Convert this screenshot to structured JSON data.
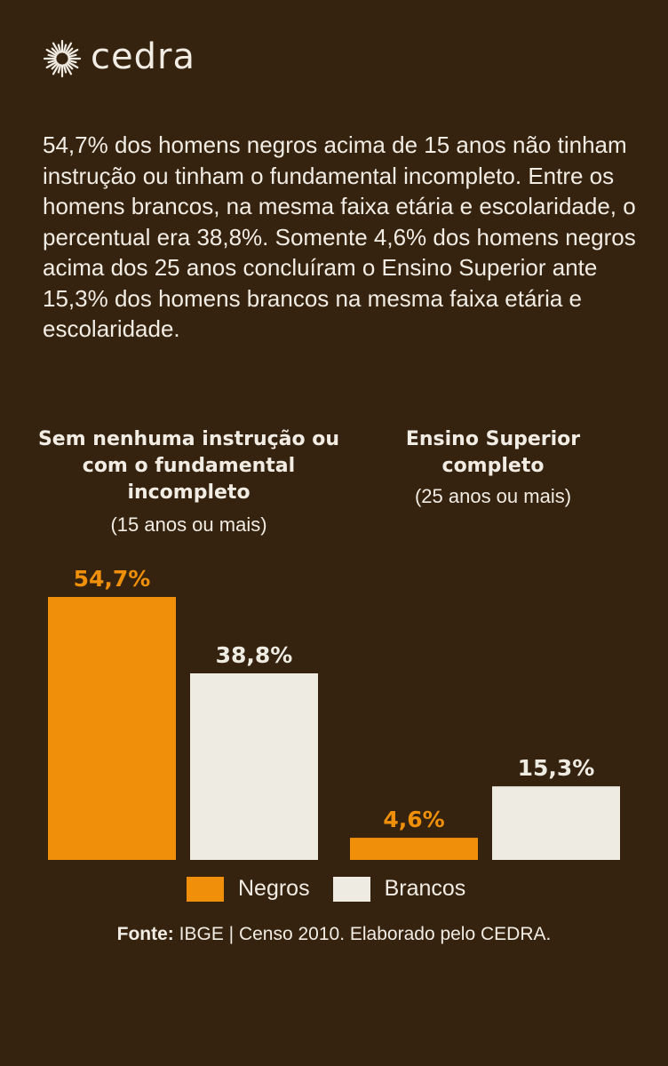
{
  "brand": {
    "name": "cedra",
    "icon": "sun-burst-icon"
  },
  "intro_text": "54,7% dos homens negros acima de 15 anos não tinham instrução ou tinham o fundamental incompleto. Entre os homens brancos, na mesma faixa etária e escolaridade, o percentual era 38,8%. Somente 4,6% dos homens negros acima dos 25 anos concluíram o Ensino Superior ante 15,3% dos homens brancos na mesma faixa etária e escolaridade.",
  "colors": {
    "background": "#35230f",
    "negros": "#f0900a",
    "brancos": "#eeebe3",
    "text": "#f1ece4"
  },
  "chart_data": {
    "type": "bar",
    "categories": [
      "Sem nenhuma instrução ou com o fundamental incompleto",
      "Ensino Superior completo"
    ],
    "category_subtitles": [
      "(15 anos ou mais)",
      "(25 anos ou mais)"
    ],
    "series": [
      {
        "name": "Negros",
        "values": [
          54.7,
          4.6
        ],
        "labels": [
          "54,7%",
          "4,6%"
        ]
      },
      {
        "name": "Brancos",
        "values": [
          38.8,
          15.3
        ],
        "labels": [
          "38,8%",
          "15,3%"
        ]
      }
    ],
    "legend": "bottom",
    "grid": false
  },
  "source": {
    "prefix": "Fonte:",
    "text": " IBGE | Censo 2010. Elaborado pelo CEDRA."
  }
}
